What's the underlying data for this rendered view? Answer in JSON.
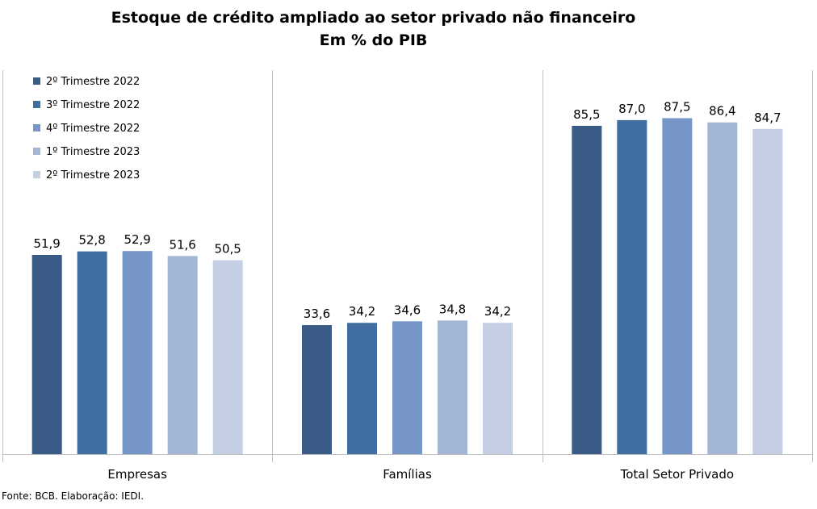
{
  "chart_data": {
    "type": "bar",
    "title": "Estoque de crédito ampliado ao setor privado não financeiro",
    "subtitle": "Em % do PIB",
    "categories": [
      "Empresas",
      "Famílias",
      "Total Setor Privado"
    ],
    "series": [
      {
        "name": "2º Trimestre 2022",
        "color": "#3a5b86",
        "values": [
          51.9,
          33.6,
          85.5
        ],
        "labels": [
          "51,9",
          "33,6",
          "85,5"
        ]
      },
      {
        "name": "3º Trimestre 2022",
        "color": "#416ea1",
        "values": [
          52.8,
          34.2,
          87.0
        ],
        "labels": [
          "52,8",
          "34,2",
          "87,0"
        ]
      },
      {
        "name": "4º Trimestre 2022",
        "color": "#7596c6",
        "values": [
          52.9,
          34.6,
          87.5
        ],
        "labels": [
          "52,9",
          "34,6",
          "87,5"
        ]
      },
      {
        "name": "1º Trimestre 2023",
        "color": "#a3b6d6",
        "values": [
          51.6,
          34.8,
          86.4
        ],
        "labels": [
          "51,6",
          "34,8",
          "86,4"
        ]
      },
      {
        "name": "2º Trimestre 2023",
        "color": "#c4cfe4",
        "values": [
          50.5,
          34.2,
          84.7
        ],
        "labels": [
          "50,5",
          "34,2",
          "84,7"
        ]
      }
    ],
    "ylim": [
      0,
      100
    ],
    "grid": false,
    "legend_position": "top-left"
  },
  "footnote": "Fonte: BCB. Elaboração: IEDI."
}
